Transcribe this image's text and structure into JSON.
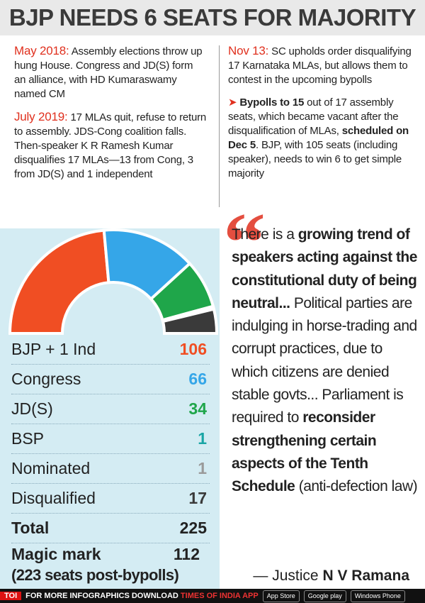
{
  "title": "BJP NEEDS 6 SEATS FOR MAJORITY",
  "left_column": [
    {
      "lead": "May 2018:",
      "text": "Assembly elections throw up hung House. Congress and JD(S) form an alliance, with HD Kumaraswamy named CM"
    },
    {
      "lead": "July 2019:",
      "text": "17 MLAs quit, refuse to return to assembly. JDS-Cong coalition falls. Then-speaker K R Ramesh Kumar disqualifies 17 MLAs—13 from Cong, 3 from JD(S) and 1 independent"
    }
  ],
  "right_column": {
    "update": {
      "lead": "Nov 13:",
      "text": "SC upholds order disqualifying 17 Karnataka MLAs, but allows them to contest in the upcoming bypolls"
    },
    "bypolls": [
      {
        "text": "Bypolls to 15",
        "bold": true
      },
      {
        "text": " out of 17 assembly seats, which became vacant after the disqualification of MLAs, ",
        "bold": false
      },
      {
        "text": "scheduled on Dec 5",
        "bold": true
      },
      {
        "text": ". BJP, with 105 seats (including speaker), needs to win 6 to get simple majority",
        "bold": false
      }
    ]
  },
  "seats": {
    "rows": [
      {
        "label": "BJP + 1 Ind",
        "value": 106,
        "color": "#f04e23"
      },
      {
        "label": "Congress",
        "value": 66,
        "color": "#35a6e8"
      },
      {
        "label": "JD(S)",
        "value": 34,
        "color": "#1fa64a"
      },
      {
        "label": "BSP",
        "value": 1,
        "color": "#19a5a5"
      },
      {
        "label": "Nominated",
        "value": 1,
        "color": "#9a9a9a"
      },
      {
        "label": "Disqualified",
        "value": 17,
        "color": "#3a3a3a"
      }
    ],
    "total": {
      "label": "Total",
      "value": 225
    },
    "magic": {
      "label": "Magic mark",
      "value": 112,
      "note": "(223 seats post-bypolls)"
    }
  },
  "quote": {
    "runs": [
      {
        "text": "There is a ",
        "bold": false
      },
      {
        "text": "growing trend of speakers acting against the constitutional duty of being neutral...",
        "bold": true
      },
      {
        "text": " Political parties are indulging in horse-trading and corrupt practices, due to which citizens are denied stable govts... Parliament is required to ",
        "bold": false
      },
      {
        "text": "reconsider strengthening certain aspects of the Tenth Schedule",
        "bold": true
      },
      {
        "text": " (anti-defection law)",
        "bold": false
      }
    ],
    "attribution_prefix": "— Justice",
    "attribution_name": "N V Ramana"
  },
  "footer": {
    "logo": "TOI",
    "text": "FOR MORE INFOGRAPHICS DOWNLOAD",
    "app": "TIMES OF INDIA APP",
    "badges": [
      "App Store",
      "Google play",
      "Windows Phone"
    ]
  }
}
